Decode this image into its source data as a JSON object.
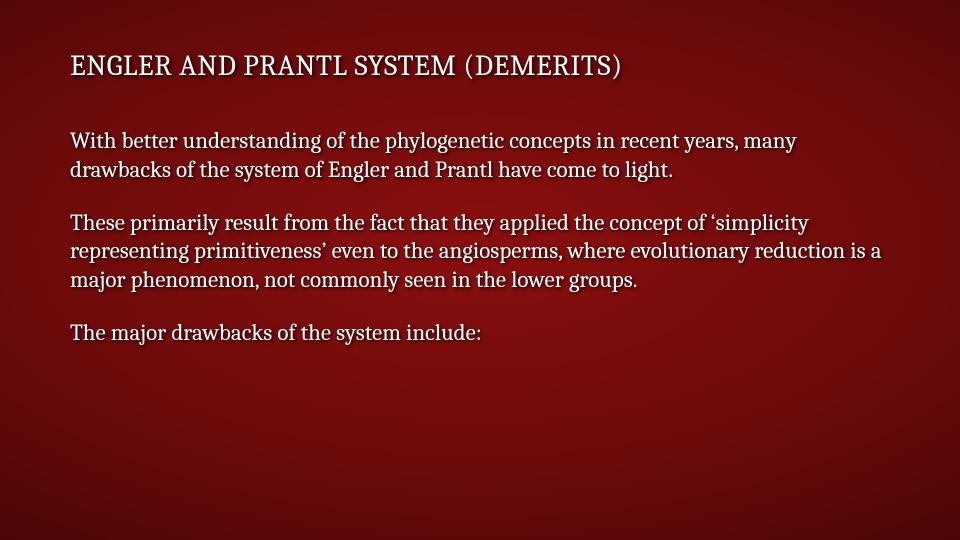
{
  "slide": {
    "title": "ENGLER AND PRANTL SYSTEM (DEMERITS)",
    "paragraphs": [
      "With better understanding of the phylogenetic concepts in recent years, many drawbacks of the system of Engler and Prantl have come to light.",
      "These primarily result from the fact that they applied the concept of ‘simplicity representing primitiveness’ even to the angiosperms, where evolutionary reduction is a major phenomenon, not commonly seen in the lower groups.",
      "The major drawbacks of the system include:"
    ]
  },
  "style": {
    "title_fontsize": 29,
    "body_fontsize": 23,
    "text_color": "#ffffff",
    "bg_gradient_inner": "#8a0f0f",
    "bg_gradient_mid": "#4a0606",
    "bg_gradient_outer": "#120101",
    "font_family": "Cambria / Georgia serif",
    "shadow_color": "rgba(0,0,0,0.85)"
  }
}
